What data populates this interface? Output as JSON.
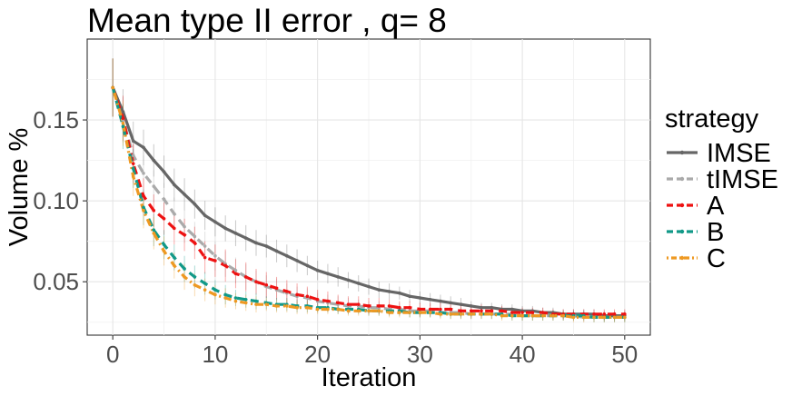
{
  "chart_data": {
    "type": "line",
    "title": "Mean type II error , q= 8",
    "xlabel": "Iteration",
    "ylabel": "Volume %",
    "xlim": [
      -2.5,
      52.5
    ],
    "ylim": [
      0.017,
      0.2
    ],
    "xticks": [
      0,
      10,
      20,
      30,
      40,
      50
    ],
    "xtick_labels": [
      "0",
      "10",
      "20",
      "30",
      "40",
      "50"
    ],
    "yticks": [
      0.05,
      0.1,
      0.15
    ],
    "ytick_labels": [
      "0.05",
      "0.10",
      "0.15"
    ],
    "grid": true,
    "legend": {
      "title": "strategy",
      "position": "right"
    },
    "x": [
      0,
      1,
      2,
      3,
      4,
      5,
      6,
      7,
      8,
      9,
      10,
      11,
      12,
      13,
      14,
      15,
      16,
      17,
      18,
      19,
      20,
      21,
      22,
      23,
      24,
      25,
      26,
      27,
      28,
      29,
      30,
      31,
      32,
      33,
      34,
      35,
      36,
      37,
      38,
      39,
      40,
      41,
      42,
      43,
      44,
      45,
      46,
      47,
      48,
      49,
      50
    ],
    "series": [
      {
        "name": "IMSE",
        "color": "#666666",
        "dash": "solid",
        "values": [
          0.17,
          0.155,
          0.137,
          0.133,
          0.125,
          0.118,
          0.11,
          0.104,
          0.098,
          0.091,
          0.087,
          0.083,
          0.08,
          0.077,
          0.074,
          0.072,
          0.069,
          0.066,
          0.063,
          0.06,
          0.057,
          0.055,
          0.053,
          0.051,
          0.049,
          0.047,
          0.045,
          0.044,
          0.043,
          0.041,
          0.04,
          0.039,
          0.038,
          0.037,
          0.036,
          0.035,
          0.034,
          0.034,
          0.033,
          0.033,
          0.032,
          0.032,
          0.031,
          0.031,
          0.03,
          0.03,
          0.03,
          0.03,
          0.029,
          0.029,
          0.029
        ],
        "errors": [
          0.018,
          0.014,
          0.012,
          0.011,
          0.01,
          0.01,
          0.01,
          0.01,
          0.009,
          0.009,
          0.009,
          0.008,
          0.008,
          0.008,
          0.008,
          0.007,
          0.007,
          0.007,
          0.007,
          0.006,
          0.006,
          0.006,
          0.006,
          0.005,
          0.005,
          0.005,
          0.005,
          0.005,
          0.004,
          0.004,
          0.004,
          0.004,
          0.004,
          0.004,
          0.004,
          0.003,
          0.003,
          0.003,
          0.003,
          0.003,
          0.003,
          0.003,
          0.003,
          0.003,
          0.003,
          0.003,
          0.003,
          0.003,
          0.003,
          0.003,
          0.003
        ]
      },
      {
        "name": "tIMSE",
        "color": "#aaaaaa",
        "dash": "dashed",
        "values": [
          0.17,
          0.15,
          0.128,
          0.117,
          0.109,
          0.101,
          0.092,
          0.084,
          0.078,
          0.072,
          0.066,
          0.061,
          0.057,
          0.053,
          0.05,
          0.047,
          0.045,
          0.043,
          0.041,
          0.04,
          0.038,
          0.037,
          0.036,
          0.035,
          0.035,
          0.034,
          0.034,
          0.033,
          0.033,
          0.032,
          0.032,
          0.032,
          0.031,
          0.031,
          0.031,
          0.03,
          0.03,
          0.03,
          0.03,
          0.03,
          0.029,
          0.029,
          0.029,
          0.029,
          0.029,
          0.029,
          0.028,
          0.028,
          0.028,
          0.028,
          0.028
        ],
        "errors": [
          0.018,
          0.014,
          0.012,
          0.011,
          0.01,
          0.01,
          0.01,
          0.01,
          0.009,
          0.009,
          0.009,
          0.008,
          0.008,
          0.008,
          0.007,
          0.007,
          0.007,
          0.006,
          0.006,
          0.006,
          0.005,
          0.005,
          0.005,
          0.005,
          0.004,
          0.004,
          0.004,
          0.004,
          0.004,
          0.004,
          0.004,
          0.004,
          0.003,
          0.003,
          0.003,
          0.003,
          0.003,
          0.003,
          0.003,
          0.003,
          0.003,
          0.003,
          0.003,
          0.003,
          0.003,
          0.003,
          0.003,
          0.003,
          0.003,
          0.003,
          0.003
        ]
      },
      {
        "name": "A",
        "color": "#ee1111",
        "dash": "dashed",
        "values": [
          0.17,
          0.151,
          0.123,
          0.103,
          0.094,
          0.089,
          0.083,
          0.079,
          0.074,
          0.065,
          0.063,
          0.06,
          0.055,
          0.053,
          0.05,
          0.048,
          0.046,
          0.044,
          0.042,
          0.041,
          0.039,
          0.038,
          0.037,
          0.036,
          0.036,
          0.035,
          0.035,
          0.035,
          0.034,
          0.034,
          0.033,
          0.033,
          0.033,
          0.033,
          0.032,
          0.032,
          0.032,
          0.032,
          0.032,
          0.031,
          0.031,
          0.031,
          0.031,
          0.03,
          0.03,
          0.03,
          0.03,
          0.03,
          0.03,
          0.03,
          0.03
        ],
        "errors": [
          0.018,
          0.014,
          0.012,
          0.011,
          0.01,
          0.01,
          0.01,
          0.01,
          0.01,
          0.01,
          0.01,
          0.01,
          0.009,
          0.009,
          0.008,
          0.008,
          0.007,
          0.007,
          0.007,
          0.006,
          0.006,
          0.006,
          0.005,
          0.005,
          0.005,
          0.005,
          0.005,
          0.004,
          0.004,
          0.004,
          0.004,
          0.004,
          0.004,
          0.004,
          0.004,
          0.004,
          0.004,
          0.003,
          0.003,
          0.003,
          0.003,
          0.003,
          0.003,
          0.003,
          0.003,
          0.003,
          0.003,
          0.003,
          0.003,
          0.003,
          0.003
        ]
      },
      {
        "name": "B",
        "color": "#119988",
        "dash": "dashed",
        "values": [
          0.17,
          0.146,
          0.12,
          0.096,
          0.082,
          0.073,
          0.065,
          0.058,
          0.053,
          0.049,
          0.045,
          0.042,
          0.04,
          0.039,
          0.038,
          0.037,
          0.036,
          0.036,
          0.035,
          0.035,
          0.034,
          0.034,
          0.033,
          0.033,
          0.033,
          0.032,
          0.032,
          0.032,
          0.032,
          0.031,
          0.031,
          0.031,
          0.031,
          0.03,
          0.03,
          0.03,
          0.03,
          0.03,
          0.03,
          0.029,
          0.029,
          0.029,
          0.029,
          0.029,
          0.029,
          0.029,
          0.029,
          0.028,
          0.028,
          0.028,
          0.028
        ],
        "errors": [
          0.018,
          0.014,
          0.012,
          0.011,
          0.01,
          0.009,
          0.008,
          0.008,
          0.007,
          0.007,
          0.006,
          0.006,
          0.005,
          0.005,
          0.005,
          0.004,
          0.004,
          0.004,
          0.004,
          0.004,
          0.003,
          0.003,
          0.003,
          0.003,
          0.003,
          0.003,
          0.003,
          0.003,
          0.003,
          0.003,
          0.003,
          0.003,
          0.003,
          0.003,
          0.003,
          0.003,
          0.003,
          0.003,
          0.003,
          0.003,
          0.003,
          0.003,
          0.003,
          0.003,
          0.003,
          0.003,
          0.003,
          0.003,
          0.003,
          0.003,
          0.003
        ]
      },
      {
        "name": "C",
        "color": "#ee9922",
        "dash": "dotdash",
        "values": [
          0.17,
          0.148,
          0.115,
          0.094,
          0.08,
          0.069,
          0.06,
          0.053,
          0.048,
          0.045,
          0.042,
          0.04,
          0.038,
          0.037,
          0.036,
          0.036,
          0.035,
          0.035,
          0.034,
          0.034,
          0.033,
          0.033,
          0.033,
          0.032,
          0.032,
          0.032,
          0.032,
          0.031,
          0.031,
          0.031,
          0.031,
          0.031,
          0.03,
          0.03,
          0.03,
          0.03,
          0.03,
          0.03,
          0.029,
          0.029,
          0.029,
          0.029,
          0.029,
          0.029,
          0.029,
          0.028,
          0.028,
          0.028,
          0.028,
          0.028,
          0.028
        ],
        "errors": [
          0.018,
          0.014,
          0.012,
          0.011,
          0.01,
          0.009,
          0.008,
          0.008,
          0.007,
          0.007,
          0.006,
          0.006,
          0.005,
          0.005,
          0.005,
          0.004,
          0.004,
          0.004,
          0.004,
          0.004,
          0.003,
          0.003,
          0.003,
          0.003,
          0.003,
          0.003,
          0.003,
          0.003,
          0.003,
          0.003,
          0.003,
          0.003,
          0.003,
          0.003,
          0.003,
          0.003,
          0.003,
          0.003,
          0.003,
          0.003,
          0.003,
          0.003,
          0.003,
          0.003,
          0.003,
          0.003,
          0.003,
          0.003,
          0.003,
          0.003,
          0.003
        ]
      }
    ]
  }
}
